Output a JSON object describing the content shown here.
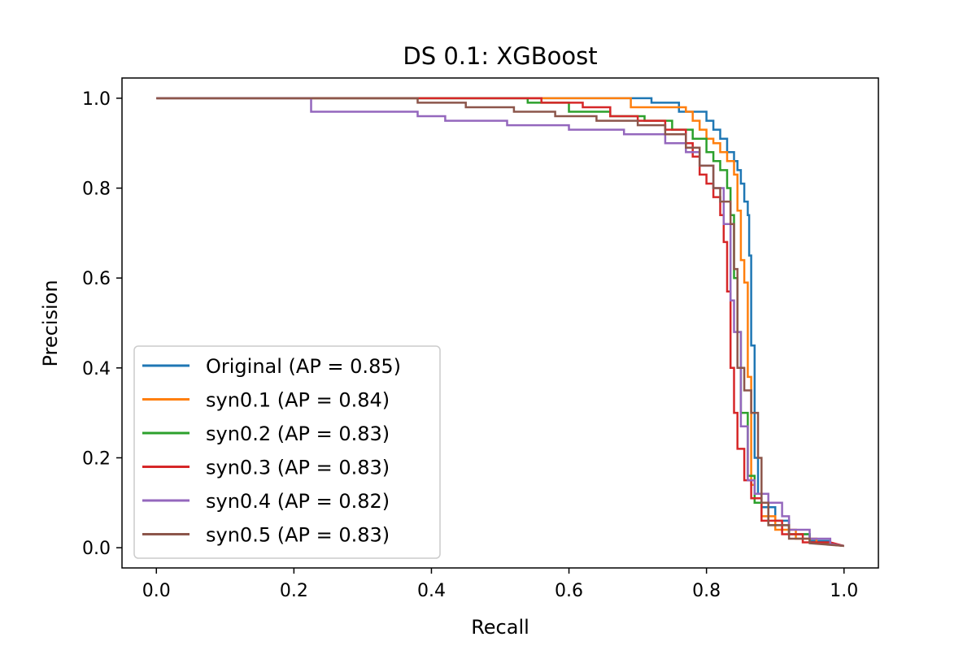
{
  "chart_data": {
    "type": "line",
    "title": "DS 0.1: XGBoost",
    "xlabel": "Recall",
    "ylabel": "Precision",
    "xlim": [
      -0.05,
      1.05
    ],
    "ylim": [
      -0.045,
      1.045
    ],
    "xticks": [
      "0.0",
      "0.2",
      "0.4",
      "0.6",
      "0.8",
      "1.0"
    ],
    "yticks": [
      "0.0",
      "0.2",
      "0.4",
      "0.6",
      "0.8",
      "1.0"
    ],
    "legend_position": "lower-left",
    "grid": false,
    "series": [
      {
        "name": "Original",
        "legend": "Original (AP = 0.85)",
        "color": "#1f77b4",
        "points": [
          [
            0,
            1
          ],
          [
            0.72,
            1
          ],
          [
            0.72,
            0.99
          ],
          [
            0.76,
            0.99
          ],
          [
            0.76,
            0.97
          ],
          [
            0.8,
            0.97
          ],
          [
            0.8,
            0.95
          ],
          [
            0.81,
            0.95
          ],
          [
            0.81,
            0.93
          ],
          [
            0.82,
            0.93
          ],
          [
            0.82,
            0.91
          ],
          [
            0.83,
            0.91
          ],
          [
            0.83,
            0.88
          ],
          [
            0.84,
            0.88
          ],
          [
            0.84,
            0.86
          ],
          [
            0.845,
            0.86
          ],
          [
            0.845,
            0.84
          ],
          [
            0.85,
            0.84
          ],
          [
            0.85,
            0.81
          ],
          [
            0.855,
            0.81
          ],
          [
            0.855,
            0.77
          ],
          [
            0.86,
            0.77
          ],
          [
            0.86,
            0.74
          ],
          [
            0.862,
            0.74
          ],
          [
            0.862,
            0.65
          ],
          [
            0.865,
            0.65
          ],
          [
            0.865,
            0.45
          ],
          [
            0.87,
            0.45
          ],
          [
            0.87,
            0.2
          ],
          [
            0.875,
            0.2
          ],
          [
            0.875,
            0.12
          ],
          [
            0.88,
            0.12
          ],
          [
            0.88,
            0.09
          ],
          [
            0.9,
            0.09
          ],
          [
            0.9,
            0.06
          ],
          [
            0.92,
            0.06
          ],
          [
            0.92,
            0.03
          ],
          [
            0.95,
            0.03
          ],
          [
            0.95,
            0.015
          ],
          [
            0.98,
            0.015
          ],
          [
            0.98,
            0.008
          ],
          [
            1,
            0.004
          ]
        ]
      },
      {
        "name": "syn0.1",
        "legend": "syn0.1 (AP = 0.84)",
        "color": "#ff7f0e",
        "points": [
          [
            0,
            1
          ],
          [
            0.69,
            1
          ],
          [
            0.69,
            0.98
          ],
          [
            0.77,
            0.98
          ],
          [
            0.77,
            0.97
          ],
          [
            0.78,
            0.97
          ],
          [
            0.78,
            0.95
          ],
          [
            0.79,
            0.95
          ],
          [
            0.79,
            0.93
          ],
          [
            0.8,
            0.93
          ],
          [
            0.8,
            0.91
          ],
          [
            0.81,
            0.91
          ],
          [
            0.81,
            0.9
          ],
          [
            0.82,
            0.9
          ],
          [
            0.82,
            0.88
          ],
          [
            0.83,
            0.88
          ],
          [
            0.83,
            0.86
          ],
          [
            0.84,
            0.86
          ],
          [
            0.84,
            0.83
          ],
          [
            0.845,
            0.83
          ],
          [
            0.845,
            0.75
          ],
          [
            0.85,
            0.75
          ],
          [
            0.85,
            0.64
          ],
          [
            0.855,
            0.64
          ],
          [
            0.855,
            0.59
          ],
          [
            0.86,
            0.59
          ],
          [
            0.86,
            0.38
          ],
          [
            0.865,
            0.38
          ],
          [
            0.865,
            0.14
          ],
          [
            0.87,
            0.14
          ],
          [
            0.87,
            0.1
          ],
          [
            0.88,
            0.1
          ],
          [
            0.88,
            0.07
          ],
          [
            0.9,
            0.07
          ],
          [
            0.9,
            0.04
          ],
          [
            0.93,
            0.04
          ],
          [
            0.93,
            0.02
          ],
          [
            0.96,
            0.02
          ],
          [
            0.96,
            0.01
          ],
          [
            1,
            0.004
          ]
        ]
      },
      {
        "name": "syn0.2",
        "legend": "syn0.2 (AP = 0.83)",
        "color": "#2ca02c",
        "points": [
          [
            0,
            1
          ],
          [
            0.54,
            1
          ],
          [
            0.54,
            0.99
          ],
          [
            0.6,
            0.99
          ],
          [
            0.6,
            0.97
          ],
          [
            0.66,
            0.97
          ],
          [
            0.66,
            0.96
          ],
          [
            0.71,
            0.96
          ],
          [
            0.71,
            0.95
          ],
          [
            0.75,
            0.95
          ],
          [
            0.75,
            0.93
          ],
          [
            0.78,
            0.93
          ],
          [
            0.78,
            0.91
          ],
          [
            0.8,
            0.91
          ],
          [
            0.8,
            0.88
          ],
          [
            0.81,
            0.88
          ],
          [
            0.81,
            0.86
          ],
          [
            0.82,
            0.86
          ],
          [
            0.82,
            0.84
          ],
          [
            0.83,
            0.84
          ],
          [
            0.83,
            0.8
          ],
          [
            0.835,
            0.8
          ],
          [
            0.835,
            0.74
          ],
          [
            0.84,
            0.74
          ],
          [
            0.84,
            0.6
          ],
          [
            0.845,
            0.6
          ],
          [
            0.845,
            0.48
          ],
          [
            0.85,
            0.48
          ],
          [
            0.85,
            0.3
          ],
          [
            0.86,
            0.3
          ],
          [
            0.86,
            0.16
          ],
          [
            0.87,
            0.16
          ],
          [
            0.87,
            0.1
          ],
          [
            0.89,
            0.1
          ],
          [
            0.89,
            0.05
          ],
          [
            0.92,
            0.05
          ],
          [
            0.92,
            0.03
          ],
          [
            0.95,
            0.03
          ],
          [
            0.95,
            0.012
          ],
          [
            1,
            0.004
          ]
        ]
      },
      {
        "name": "syn0.3",
        "legend": "syn0.3 (AP = 0.83)",
        "color": "#d62728",
        "points": [
          [
            0,
            1
          ],
          [
            0.56,
            1
          ],
          [
            0.56,
            0.99
          ],
          [
            0.62,
            0.99
          ],
          [
            0.62,
            0.98
          ],
          [
            0.66,
            0.98
          ],
          [
            0.66,
            0.96
          ],
          [
            0.7,
            0.96
          ],
          [
            0.7,
            0.95
          ],
          [
            0.74,
            0.95
          ],
          [
            0.74,
            0.93
          ],
          [
            0.77,
            0.93
          ],
          [
            0.77,
            0.9
          ],
          [
            0.78,
            0.9
          ],
          [
            0.78,
            0.87
          ],
          [
            0.79,
            0.87
          ],
          [
            0.79,
            0.83
          ],
          [
            0.8,
            0.83
          ],
          [
            0.8,
            0.81
          ],
          [
            0.81,
            0.81
          ],
          [
            0.81,
            0.78
          ],
          [
            0.82,
            0.78
          ],
          [
            0.82,
            0.74
          ],
          [
            0.825,
            0.74
          ],
          [
            0.825,
            0.68
          ],
          [
            0.83,
            0.68
          ],
          [
            0.83,
            0.57
          ],
          [
            0.835,
            0.57
          ],
          [
            0.835,
            0.4
          ],
          [
            0.84,
            0.4
          ],
          [
            0.84,
            0.3
          ],
          [
            0.845,
            0.3
          ],
          [
            0.845,
            0.22
          ],
          [
            0.855,
            0.22
          ],
          [
            0.855,
            0.15
          ],
          [
            0.865,
            0.15
          ],
          [
            0.865,
            0.11
          ],
          [
            0.88,
            0.11
          ],
          [
            0.88,
            0.06
          ],
          [
            0.91,
            0.06
          ],
          [
            0.91,
            0.03
          ],
          [
            0.94,
            0.03
          ],
          [
            0.94,
            0.012
          ],
          [
            0.98,
            0.012
          ],
          [
            1,
            0.004
          ]
        ]
      },
      {
        "name": "syn0.4",
        "legend": "syn0.4 (AP = 0.82)",
        "color": "#9467bd",
        "points": [
          [
            0,
            1
          ],
          [
            0.225,
            1
          ],
          [
            0.225,
            0.97
          ],
          [
            0.38,
            0.97
          ],
          [
            0.38,
            0.96
          ],
          [
            0.42,
            0.96
          ],
          [
            0.42,
            0.95
          ],
          [
            0.51,
            0.95
          ],
          [
            0.51,
            0.94
          ],
          [
            0.6,
            0.94
          ],
          [
            0.6,
            0.93
          ],
          [
            0.68,
            0.93
          ],
          [
            0.68,
            0.92
          ],
          [
            0.74,
            0.92
          ],
          [
            0.74,
            0.9
          ],
          [
            0.77,
            0.9
          ],
          [
            0.77,
            0.88
          ],
          [
            0.79,
            0.88
          ],
          [
            0.79,
            0.85
          ],
          [
            0.81,
            0.85
          ],
          [
            0.81,
            0.8
          ],
          [
            0.825,
            0.8
          ],
          [
            0.825,
            0.72
          ],
          [
            0.835,
            0.72
          ],
          [
            0.835,
            0.55
          ],
          [
            0.84,
            0.55
          ],
          [
            0.84,
            0.48
          ],
          [
            0.85,
            0.48
          ],
          [
            0.85,
            0.27
          ],
          [
            0.86,
            0.27
          ],
          [
            0.86,
            0.15
          ],
          [
            0.87,
            0.15
          ],
          [
            0.87,
            0.12
          ],
          [
            0.89,
            0.12
          ],
          [
            0.89,
            0.1
          ],
          [
            0.91,
            0.1
          ],
          [
            0.91,
            0.07
          ],
          [
            0.92,
            0.07
          ],
          [
            0.92,
            0.04
          ],
          [
            0.95,
            0.04
          ],
          [
            0.95,
            0.02
          ],
          [
            0.98,
            0.02
          ],
          [
            0.98,
            0.008
          ],
          [
            1,
            0.004
          ]
        ]
      },
      {
        "name": "syn0.5",
        "legend": "syn0.5 (AP = 0.83)",
        "color": "#8c564b",
        "points": [
          [
            0,
            1
          ],
          [
            0.38,
            1
          ],
          [
            0.38,
            0.99
          ],
          [
            0.45,
            0.99
          ],
          [
            0.45,
            0.98
          ],
          [
            0.52,
            0.98
          ],
          [
            0.52,
            0.97
          ],
          [
            0.58,
            0.97
          ],
          [
            0.58,
            0.96
          ],
          [
            0.64,
            0.96
          ],
          [
            0.64,
            0.95
          ],
          [
            0.7,
            0.95
          ],
          [
            0.7,
            0.94
          ],
          [
            0.74,
            0.94
          ],
          [
            0.74,
            0.92
          ],
          [
            0.77,
            0.92
          ],
          [
            0.77,
            0.89
          ],
          [
            0.79,
            0.89
          ],
          [
            0.79,
            0.85
          ],
          [
            0.81,
            0.85
          ],
          [
            0.81,
            0.8
          ],
          [
            0.82,
            0.8
          ],
          [
            0.82,
            0.77
          ],
          [
            0.835,
            0.77
          ],
          [
            0.835,
            0.72
          ],
          [
            0.84,
            0.72
          ],
          [
            0.84,
            0.62
          ],
          [
            0.845,
            0.62
          ],
          [
            0.845,
            0.4
          ],
          [
            0.855,
            0.4
          ],
          [
            0.855,
            0.35
          ],
          [
            0.865,
            0.35
          ],
          [
            0.865,
            0.3
          ],
          [
            0.875,
            0.3
          ],
          [
            0.875,
            0.2
          ],
          [
            0.88,
            0.2
          ],
          [
            0.88,
            0.1
          ],
          [
            0.89,
            0.1
          ],
          [
            0.89,
            0.05
          ],
          [
            0.92,
            0.05
          ],
          [
            0.92,
            0.02
          ],
          [
            0.95,
            0.02
          ],
          [
            0.95,
            0.01
          ],
          [
            1,
            0.004
          ]
        ]
      }
    ]
  }
}
